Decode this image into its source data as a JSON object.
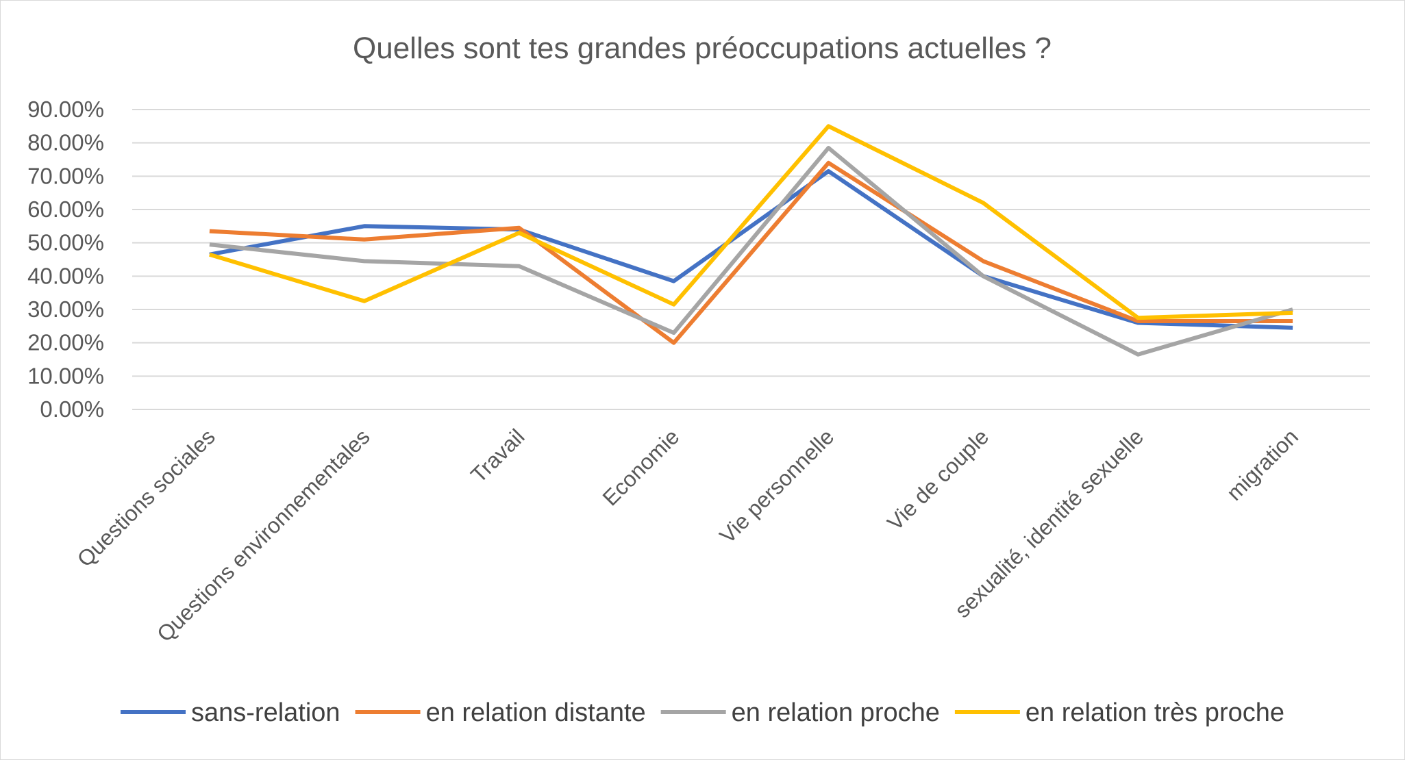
{
  "chart_data": {
    "type": "line",
    "title": "Quelles sont tes grandes préoccupations actuelles ?",
    "xlabel": "",
    "ylabel": "",
    "ylim": [
      0,
      0.9
    ],
    "yticks": [
      {
        "value": 0.0,
        "label": "0.00%"
      },
      {
        "value": 0.1,
        "label": "10.00%"
      },
      {
        "value": 0.2,
        "label": "20.00%"
      },
      {
        "value": 0.3,
        "label": "30.00%"
      },
      {
        "value": 0.4,
        "label": "40.00%"
      },
      {
        "value": 0.5,
        "label": "50.00%"
      },
      {
        "value": 0.6,
        "label": "60.00%"
      },
      {
        "value": 0.7,
        "label": "70.00%"
      },
      {
        "value": 0.8,
        "label": "80.00%"
      },
      {
        "value": 0.9,
        "label": "90.00%"
      }
    ],
    "grid": true,
    "legend_position": "bottom",
    "categories": [
      "Questions sociales",
      "Questions environnementales",
      "Travail",
      "Economie",
      "Vie personnelle",
      "Vie de couple",
      "sexualité, identité sexuelle",
      "migration"
    ],
    "series": [
      {
        "name": "sans-relation",
        "color": "#4472C4",
        "values": [
          0.465,
          0.55,
          0.54,
          0.385,
          0.715,
          0.4,
          0.26,
          0.245
        ]
      },
      {
        "name": "en relation distante",
        "color": "#ED7D31",
        "values": [
          0.535,
          0.51,
          0.545,
          0.2,
          0.74,
          0.445,
          0.265,
          0.265
        ]
      },
      {
        "name": "en relation proche",
        "color": "#A5A5A5",
        "values": [
          0.495,
          0.445,
          0.43,
          0.23,
          0.785,
          0.4,
          0.165,
          0.3
        ]
      },
      {
        "name": "en relation très proche",
        "color": "#FFC000",
        "values": [
          0.465,
          0.325,
          0.53,
          0.315,
          0.85,
          0.62,
          0.275,
          0.29
        ]
      }
    ]
  }
}
